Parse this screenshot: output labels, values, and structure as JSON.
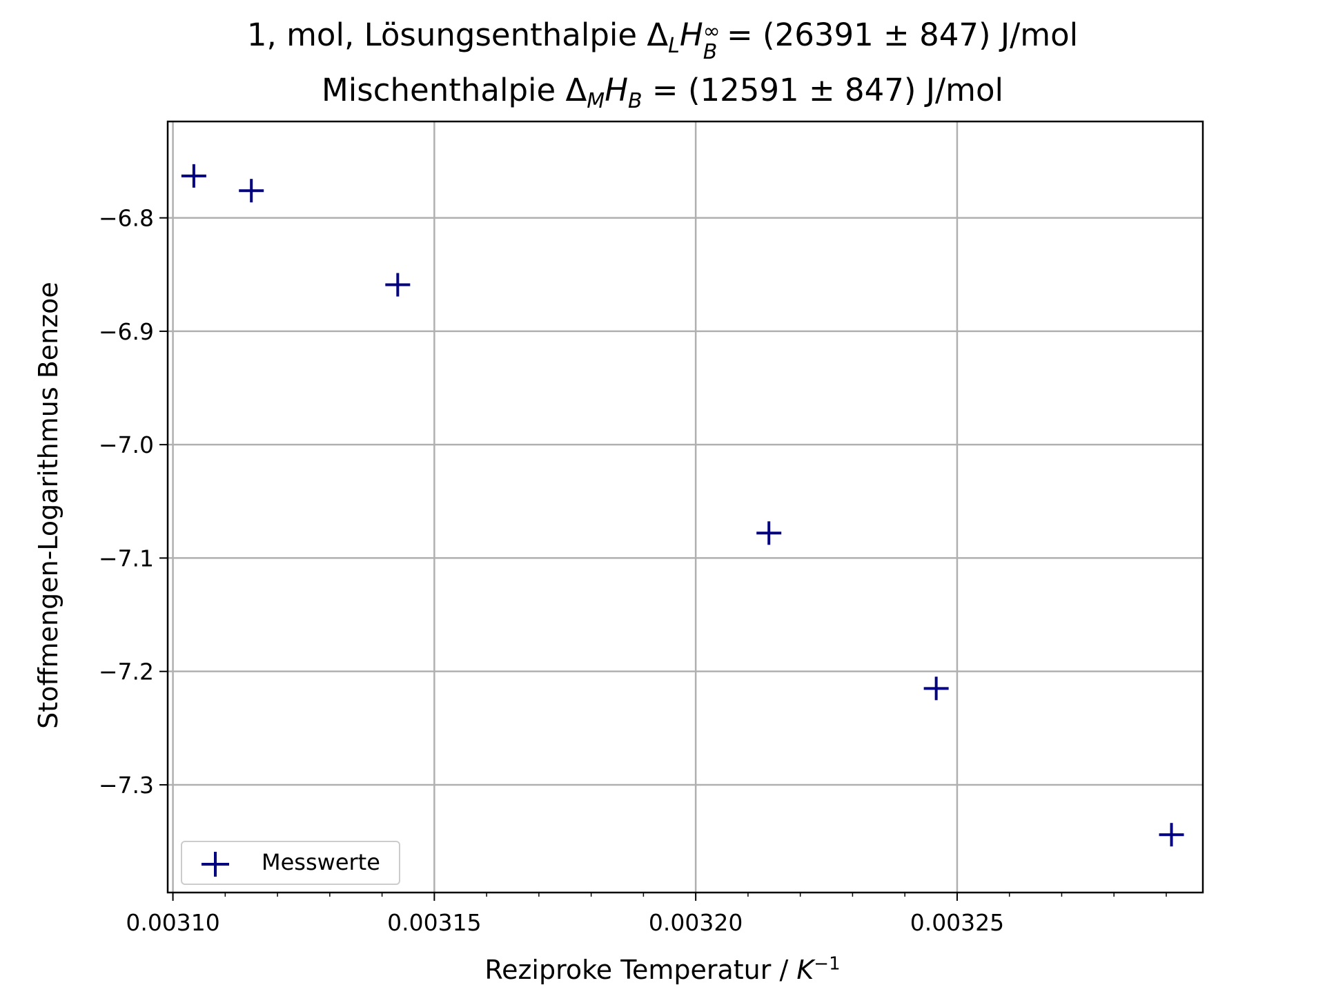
{
  "chart_data": {
    "type": "scatter",
    "title_line1": {
      "prefix": "1, mol, Lösungsenthalpie Δ",
      "sub": "L",
      "italic_symbol": "H",
      "sup": "∞",
      "sub2": "B",
      "suffix": " = (26391 ± 847) J/mol"
    },
    "title_line2": {
      "prefix": "Mischenthalpie Δ",
      "sub": "M",
      "italic_symbol": "H",
      "sub2": "B",
      "suffix": " =  (12591 ± 847) J/mol"
    },
    "xlabel": {
      "prefix": "Reziproke Temperatur / ",
      "italic_symbol": "K",
      "sup": "−1"
    },
    "ylabel": "Stoffmengen-Logarithmus Benzoe",
    "xlim": [
      0.003099,
      0.003297
    ],
    "ylim": [
      -7.395,
      -6.715
    ],
    "x_ticks": [
      0.0031,
      0.00315,
      0.0032,
      0.00325
    ],
    "x_tick_labels": [
      "0.00310",
      "0.00315",
      "0.00320",
      "0.00325"
    ],
    "y_ticks": [
      -6.8,
      -6.9,
      -7.0,
      -7.1,
      -7.2,
      -7.3
    ],
    "y_tick_labels": [
      "−6.8",
      "−6.9",
      "−7.0",
      "−7.1",
      "−7.2",
      "−7.3"
    ],
    "grid": true,
    "legend_position": "lower-left",
    "series": [
      {
        "name": "Messwerte",
        "color": "#000080",
        "marker": "errorbar-cross",
        "x": [
          0.003104,
          0.003115,
          0.003143,
          0.003214,
          0.003246,
          0.003291
        ],
        "y": [
          -6.763,
          -6.776,
          -6.859,
          -7.078,
          -7.215,
          -7.344
        ]
      }
    ]
  }
}
